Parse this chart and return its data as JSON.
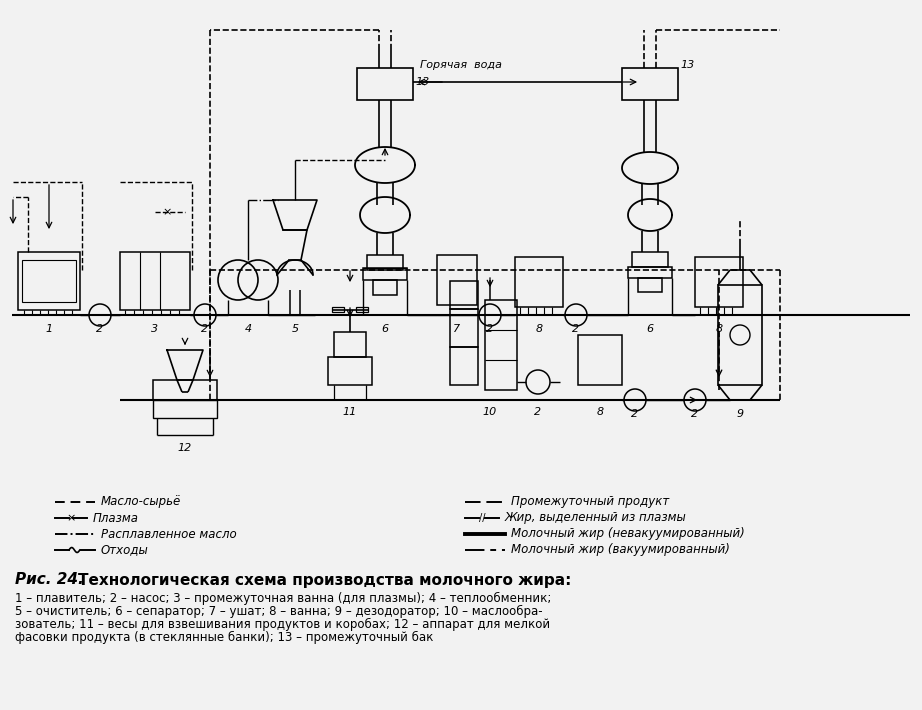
{
  "bg_color": "#f2f2f2",
  "fig_caption": "Рис. 24. Технологическая схема производства молочного жира:",
  "caption_line1": "1 – плавитель; 2 – насос; 3 – промежуточная ванна (для плазмы); 4 – теплообменник;",
  "caption_line2": "5 – очиститель; 6 – сепаратор; 7 – ушат; 8 – ванна; 9 – дезодоратор; 10 – маслообра-",
  "caption_line3": "зователь; 11 – весы для взвешивания продуктов и коробах; 12 – аппарат для мелкой",
  "caption_line4": "фасовки продукта (в стеклянные банки); 13 – промежуточный бак",
  "leg1_left": "Масло-сырьё",
  "leg2_left": "Плазма",
  "leg3_left": "Расплавленное масло",
  "leg4_left": "Отходы",
  "leg1_right": "Промежуточный продукт",
  "leg2_right": "Жир, выделенный из плазмы",
  "leg3_right": "Молочный жир (невакуумированный)",
  "leg4_right": "Молочный жир (вакуумированный)",
  "hot_water": "Горячая  вода"
}
